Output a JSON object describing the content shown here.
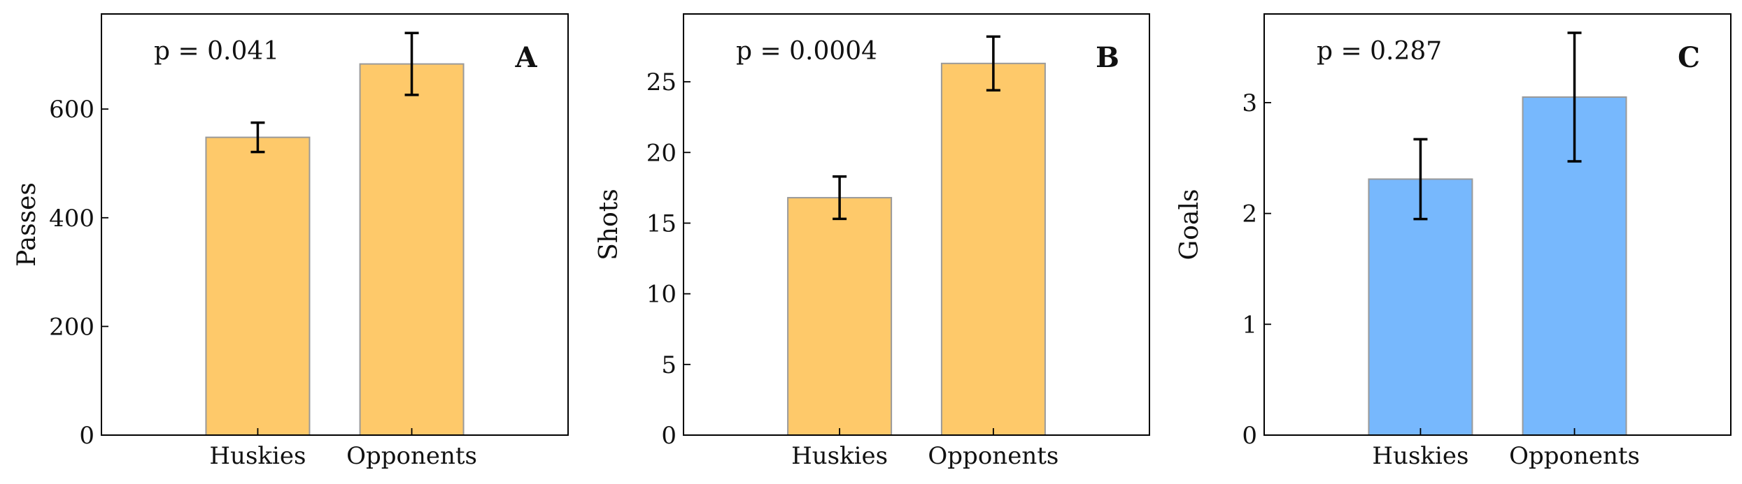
{
  "chart_data": [
    {
      "type": "bar",
      "panel_label": "A",
      "ylabel": "Passes",
      "categories": [
        "Huskies",
        "Opponents"
      ],
      "values": [
        548,
        683
      ],
      "errors": [
        27,
        57
      ],
      "ylim": [
        0,
        775
      ],
      "yticks": [
        0,
        200,
        400,
        600
      ],
      "ytick_labels": [
        "0",
        "200",
        "400",
        "600"
      ],
      "annotation": "p = 0.041",
      "bar_color": "#FEC96A",
      "grid": false
    },
    {
      "type": "bar",
      "panel_label": "B",
      "ylabel": "Shots",
      "categories": [
        "Huskies",
        "Opponents"
      ],
      "values": [
        16.8,
        26.3
      ],
      "errors": [
        1.5,
        1.9
      ],
      "ylim": [
        0,
        29.8
      ],
      "yticks": [
        0,
        5,
        10,
        15,
        20,
        25
      ],
      "ytick_labels": [
        "0",
        "5",
        "10",
        "15",
        "20",
        "25"
      ],
      "annotation": "p = 0.0004",
      "bar_color": "#FEC96A",
      "grid": false
    },
    {
      "type": "bar",
      "panel_label": "C",
      "ylabel": "Goals",
      "categories": [
        "Huskies",
        "Opponents"
      ],
      "values": [
        2.31,
        3.05
      ],
      "errors": [
        0.36,
        0.58
      ],
      "ylim": [
        0,
        3.8
      ],
      "yticks": [
        0,
        1,
        2,
        3
      ],
      "ytick_labels": [
        "0",
        "1",
        "2",
        "3"
      ],
      "annotation": "p = 0.287",
      "bar_color": "#77B8FD",
      "grid": false
    }
  ]
}
